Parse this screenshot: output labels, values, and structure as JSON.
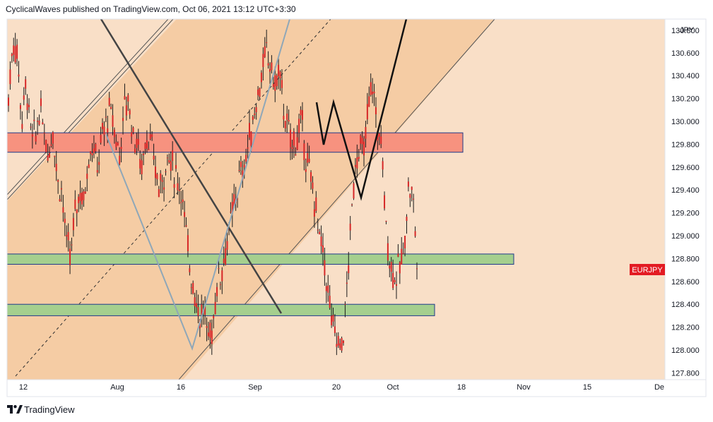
{
  "header": {
    "text": "CyclicalWaves published on TradingView.com, Oct 06, 2021 13:12 UTC+3:30"
  },
  "footer": {
    "brand": "TradingView"
  },
  "price_axis": {
    "currency_label": "JPY",
    "ticks": [
      "130.600",
      "130.400",
      "130.200",
      "130.000",
      "129.800",
      "129.600",
      "129.400",
      "129.200",
      "129.000",
      "128.800",
      "128.600",
      "128.400",
      "128.200",
      "128.000",
      "127.800"
    ],
    "top_partial_tick": "130.800"
  },
  "symbol_badge": {
    "text": "EURJPY",
    "color": "#e31b23"
  },
  "time_axis": {
    "labels": [
      "12",
      "Aug",
      "16",
      "Sep",
      "20",
      "Oct",
      "18",
      "Nov",
      "15",
      "De"
    ]
  },
  "colors": {
    "background_zone": "#f9dfc7",
    "channel_fill": "#f5cca4",
    "resistance_zone": "#f7927f",
    "support_zone": "#a5cf8e",
    "candle": "#d62727",
    "wick": "#1a1a1a"
  },
  "chart_data": {
    "type": "candlestick",
    "symbol": "EURJPY",
    "quote_currency": "JPY",
    "ylim": [
      127.76,
      130.85
    ],
    "x_ticks": [
      "12",
      "Aug",
      "16",
      "Sep",
      "20",
      "Oct",
      "18",
      "Nov",
      "15",
      "De"
    ],
    "close_series": [
      130.2,
      130.7,
      130.6,
      130.0,
      130.35,
      129.9,
      129.85,
      130.1,
      129.95,
      129.7,
      129.95,
      129.5,
      129.4,
      128.95,
      128.8,
      129.2,
      129.4,
      129.3,
      129.7,
      129.8,
      129.6,
      129.85,
      130.0,
      130.1,
      129.9,
      129.7,
      130.1,
      130.2,
      129.9,
      129.8,
      129.6,
      129.9,
      129.8,
      129.6,
      129.4,
      129.55,
      129.7,
      129.6,
      129.5,
      129.4,
      129.0,
      128.7,
      128.5,
      128.3,
      128.35,
      128.1,
      128.2,
      128.6,
      128.7,
      128.9,
      129.1,
      129.3,
      129.5,
      129.6,
      129.8,
      130.0,
      130.2,
      130.4,
      130.6,
      130.5,
      130.3,
      130.45,
      130.1,
      129.9,
      129.8,
      129.85,
      130.0,
      129.7,
      129.5,
      129.3,
      129.0,
      128.8,
      128.5,
      128.2,
      128.1,
      128.0,
      128.4,
      129.0,
      129.6,
      129.8,
      129.7,
      130.1,
      130.35,
      129.95,
      129.8,
      129.1,
      128.75,
      128.65,
      128.7,
      128.85,
      129.4,
      129.4,
      128.8
    ],
    "zones": [
      {
        "type": "resistance",
        "low": 129.73,
        "high": 129.9
      },
      {
        "type": "support",
        "low": 128.75,
        "high": 128.84
      },
      {
        "type": "support",
        "low": 128.3,
        "high": 128.4
      }
    ]
  }
}
